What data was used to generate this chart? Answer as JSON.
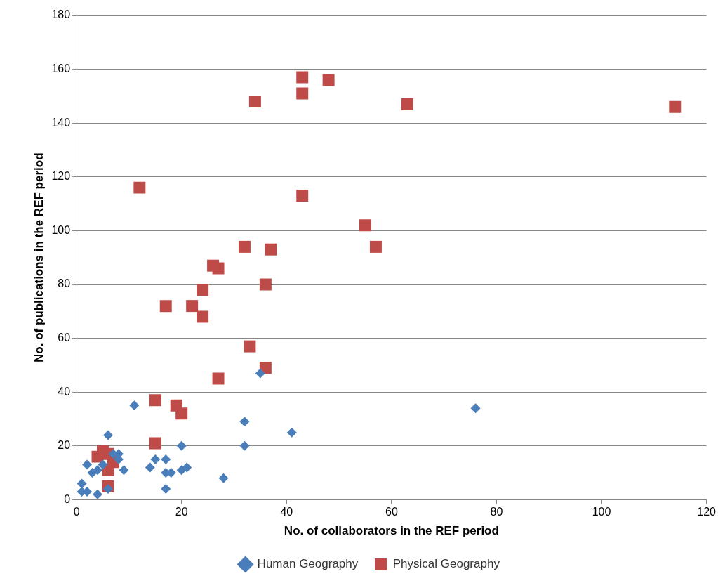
{
  "chart_data": {
    "type": "scatter",
    "xlabel": "No. of collaborators in the REF period",
    "ylabel": "No. of publications in the REF period",
    "xlim": [
      0,
      120
    ],
    "xticks": [
      0,
      20,
      40,
      60,
      80,
      100,
      120
    ],
    "ylim": [
      0,
      180
    ],
    "yticks": [
      0,
      20,
      40,
      60,
      80,
      100,
      120,
      140,
      160,
      180
    ],
    "grid": "y",
    "legend": "bottom",
    "series": [
      {
        "name": "Human Geography",
        "color": "#4a7ebb",
        "marker": "diamond",
        "x": [
          1,
          1,
          2,
          2,
          3,
          4,
          4,
          5,
          6,
          6,
          7,
          8,
          8,
          9,
          11,
          14,
          15,
          17,
          17,
          17,
          18,
          20,
          20,
          21,
          28,
          32,
          32,
          35,
          41,
          76
        ],
        "values": [
          6,
          3,
          13,
          3,
          10,
          11,
          2,
          13,
          24,
          4,
          17,
          17,
          15,
          11,
          35,
          12,
          15,
          15,
          10,
          4,
          10,
          11,
          20,
          12,
          8,
          29,
          20,
          47,
          25,
          34
        ]
      },
      {
        "name": "Physical Geography",
        "color": "#be4b48",
        "marker": "square",
        "x": [
          4,
          5,
          6,
          6,
          6,
          7,
          12,
          15,
          15,
          17,
          19,
          20,
          22,
          24,
          24,
          26,
          27,
          27,
          32,
          33,
          34,
          36,
          36,
          37,
          43,
          43,
          43,
          48,
          55,
          57,
          63,
          114
        ],
        "values": [
          16,
          18,
          17,
          11,
          5,
          14,
          116,
          37,
          21,
          72,
          35,
          32,
          72,
          78,
          68,
          87,
          86,
          45,
          94,
          57,
          148,
          80,
          49,
          93,
          157,
          151,
          113,
          156,
          102,
          94,
          147,
          146
        ]
      }
    ]
  }
}
